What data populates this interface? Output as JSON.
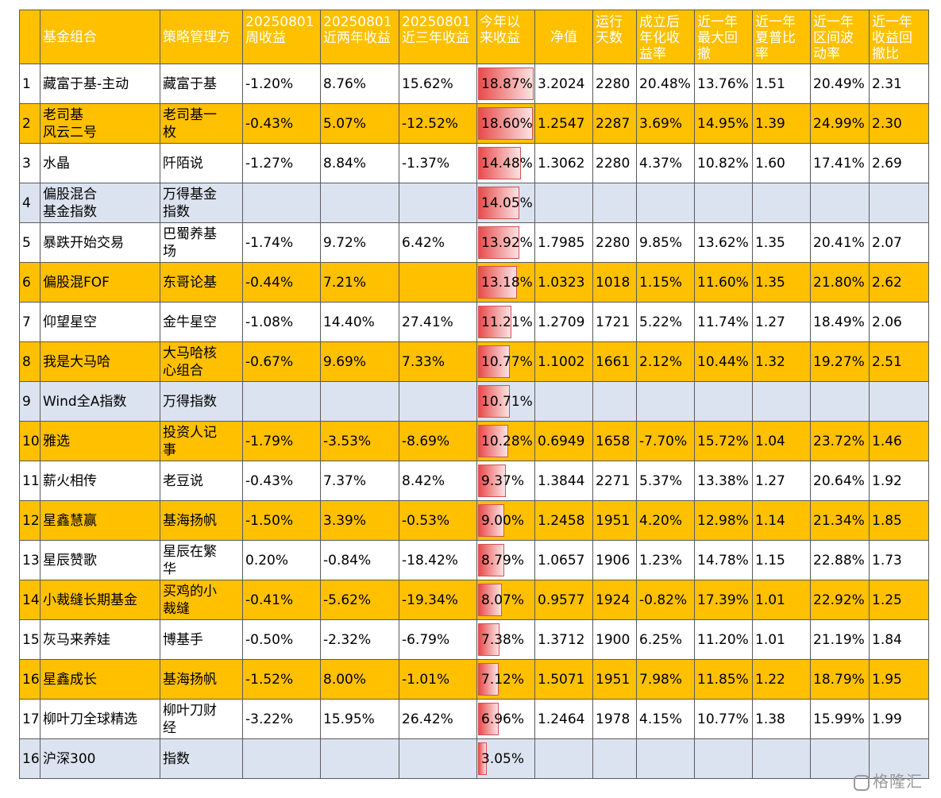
{
  "headers": [
    "基金组合",
    "策略管理方",
    "20250801\n周收益",
    "20250801\n近两年收益",
    "20250801\n近三年收益",
    "今年以\n来收益",
    "净值",
    "运行\n天数",
    "成立后\n年化收\n益率",
    "近一年\n最大回\n撤",
    "近一年\n夏普比\n率",
    "近一年\n区间波\n动率",
    "近一年\n收益回\n撤比"
  ],
  "ytd_max": 18.87,
  "rows": [
    {
      "rank": "1",
      "name": "藏富于基-主动",
      "manager": "藏富于基",
      "week": "-1.20%",
      "y2": "8.76%",
      "y3": "15.62%",
      "ytd": "18.87%",
      "ytd_value": 18.87,
      "nav": "3.2024",
      "days": "2280",
      "annual": "20.48%",
      "mdd": "13.76%",
      "sharpe": "1.51",
      "vol": "20.49%",
      "calmar": "2.31",
      "style": "white"
    },
    {
      "rank": "2",
      "name": "老司基\n风云二号",
      "manager": "老司基一\n枚",
      "week": "-0.43%",
      "y2": "5.07%",
      "y3": "-12.52%",
      "ytd": "18.60%",
      "ytd_value": 18.6,
      "nav": "1.2547",
      "days": "2287",
      "annual": "3.69%",
      "mdd": "14.95%",
      "sharpe": "1.39",
      "vol": "24.99%",
      "calmar": "2.30",
      "style": "orange"
    },
    {
      "rank": "3",
      "name": "水晶",
      "manager": "阡陌说",
      "week": "-1.27%",
      "y2": "8.84%",
      "y3": "-1.37%",
      "ytd": "14.48%",
      "ytd_value": 14.48,
      "nav": "1.3062",
      "days": "2280",
      "annual": "4.37%",
      "mdd": "10.82%",
      "sharpe": "1.60",
      "vol": "17.41%",
      "calmar": "2.69",
      "style": "white"
    },
    {
      "rank": "4",
      "name": "偏股混合\n基金指数",
      "manager": "万得基金\n指数",
      "week": "",
      "y2": "",
      "y3": "",
      "ytd": "14.05%",
      "ytd_value": 14.05,
      "nav": "",
      "days": "",
      "annual": "",
      "mdd": "",
      "sharpe": "",
      "vol": "",
      "calmar": "",
      "style": "index"
    },
    {
      "rank": "5",
      "name": "暴跌开始交易",
      "manager": "巴蜀养基\n场",
      "week": "-1.74%",
      "y2": "9.72%",
      "y3": "6.42%",
      "ytd": "13.92%",
      "ytd_value": 13.92,
      "nav": "1.7985",
      "days": "2280",
      "annual": "9.85%",
      "mdd": "13.62%",
      "sharpe": "1.35",
      "vol": "20.41%",
      "calmar": "2.07",
      "style": "white"
    },
    {
      "rank": "6",
      "name": "偏股混FOF",
      "manager": "东哥论基",
      "week": "-0.44%",
      "y2": "7.21%",
      "y3": "",
      "ytd": "13.18%",
      "ytd_value": 13.18,
      "nav": "1.0323",
      "days": "1018",
      "annual": "1.15%",
      "mdd": "11.60%",
      "sharpe": "1.35",
      "vol": "21.80%",
      "calmar": "2.62",
      "style": "orange"
    },
    {
      "rank": "7",
      "name": "仰望星空",
      "manager": "金牛星空",
      "week": "-1.08%",
      "y2": "14.40%",
      "y3": "27.41%",
      "ytd": "11.21%",
      "ytd_value": 11.21,
      "nav": "1.2709",
      "days": "1721",
      "annual": "5.22%",
      "mdd": "11.74%",
      "sharpe": "1.27",
      "vol": "18.49%",
      "calmar": "2.06",
      "style": "white"
    },
    {
      "rank": "8",
      "name": "我是大马哈",
      "manager": "大马哈核\n心组合",
      "week": "-0.67%",
      "y2": "9.69%",
      "y3": "7.33%",
      "ytd": "10.77%",
      "ytd_value": 10.77,
      "nav": "1.1002",
      "days": "1661",
      "annual": "2.12%",
      "mdd": "10.44%",
      "sharpe": "1.32",
      "vol": "19.27%",
      "calmar": "2.51",
      "style": "orange"
    },
    {
      "rank": "9",
      "name": "Wind全A指数",
      "manager": "万得指数",
      "week": "",
      "y2": "",
      "y3": "",
      "ytd": "10.71%",
      "ytd_value": 10.71,
      "nav": "",
      "days": "",
      "annual": "",
      "mdd": "",
      "sharpe": "",
      "vol": "",
      "calmar": "",
      "style": "index"
    },
    {
      "rank": "10",
      "name": "雅选",
      "manager": "投资人记\n事",
      "week": "-1.79%",
      "y2": "-3.53%",
      "y3": "-8.69%",
      "ytd": "10.28%",
      "ytd_value": 10.28,
      "nav": "0.6949",
      "days": "1658",
      "annual": "-7.70%",
      "mdd": "15.72%",
      "sharpe": "1.04",
      "vol": "23.72%",
      "calmar": "1.46",
      "style": "orange"
    },
    {
      "rank": "11",
      "name": "薪火相传",
      "manager": "老豆说",
      "week": "-0.43%",
      "y2": "7.37%",
      "y3": "8.42%",
      "ytd": "9.37%",
      "ytd_value": 9.37,
      "nav": "1.3844",
      "days": "2271",
      "annual": "5.37%",
      "mdd": "13.38%",
      "sharpe": "1.27",
      "vol": "20.64%",
      "calmar": "1.92",
      "style": "white"
    },
    {
      "rank": "12",
      "name": "星鑫慧赢",
      "manager": "基海扬帆",
      "week": "-1.50%",
      "y2": "3.39%",
      "y3": "-0.53%",
      "ytd": "9.00%",
      "ytd_value": 9.0,
      "nav": "1.2458",
      "days": "1951",
      "annual": "4.20%",
      "mdd": "12.98%",
      "sharpe": "1.14",
      "vol": "21.34%",
      "calmar": "1.85",
      "style": "orange"
    },
    {
      "rank": "13",
      "name": "星辰赞歌",
      "manager": "星辰在繁\n华",
      "week": "0.20%",
      "y2": "-0.84%",
      "y3": "-18.42%",
      "ytd": "8.79%",
      "ytd_value": 8.79,
      "nav": "1.0657",
      "days": "1906",
      "annual": "1.23%",
      "mdd": "14.78%",
      "sharpe": "1.15",
      "vol": "22.88%",
      "calmar": "1.73",
      "style": "white"
    },
    {
      "rank": "14",
      "name": "小裁缝长期基金",
      "manager": "买鸡的小\n裁缝",
      "week": "-0.41%",
      "y2": "-5.62%",
      "y3": "-19.34%",
      "ytd": "8.07%",
      "ytd_value": 8.07,
      "nav": "0.9577",
      "days": "1924",
      "annual": "-0.82%",
      "mdd": "17.39%",
      "sharpe": "1.01",
      "vol": "22.92%",
      "calmar": "1.25",
      "style": "orange"
    },
    {
      "rank": "15",
      "name": "灰马来养娃",
      "manager": "博基手",
      "week": "-0.50%",
      "y2": "-2.32%",
      "y3": "-6.79%",
      "ytd": "7.38%",
      "ytd_value": 7.38,
      "nav": "1.3712",
      "days": "1900",
      "annual": "6.25%",
      "mdd": "11.20%",
      "sharpe": "1.01",
      "vol": "21.19%",
      "calmar": "1.84",
      "style": "white"
    },
    {
      "rank": "16",
      "name": "星鑫成长",
      "manager": "基海扬帆",
      "week": "-1.52%",
      "y2": "8.00%",
      "y3": "-1.01%",
      "ytd": "7.12%",
      "ytd_value": 7.12,
      "nav": "1.5071",
      "days": "1951",
      "annual": "7.98%",
      "mdd": "11.85%",
      "sharpe": "1.22",
      "vol": "18.79%",
      "calmar": "1.95",
      "style": "orange"
    },
    {
      "rank": "17",
      "name": "柳叶刀全球精选",
      "manager": "柳叶刀财\n经",
      "week": "-3.22%",
      "y2": "15.95%",
      "y3": "26.42%",
      "ytd": "6.96%",
      "ytd_value": 6.96,
      "nav": "1.2464",
      "days": "1978",
      "annual": "4.15%",
      "mdd": "10.77%",
      "sharpe": "1.38",
      "vol": "15.99%",
      "calmar": "1.99",
      "style": "white"
    },
    {
      "rank": "16",
      "name": "沪深300",
      "manager": "指数",
      "week": "",
      "y2": "",
      "y3": "",
      "ytd": "3.05%",
      "ytd_value": 3.05,
      "nav": "",
      "days": "",
      "annual": "",
      "mdd": "",
      "sharpe": "",
      "vol": "",
      "calmar": "",
      "style": "index"
    }
  ],
  "watermark": "格隆汇"
}
